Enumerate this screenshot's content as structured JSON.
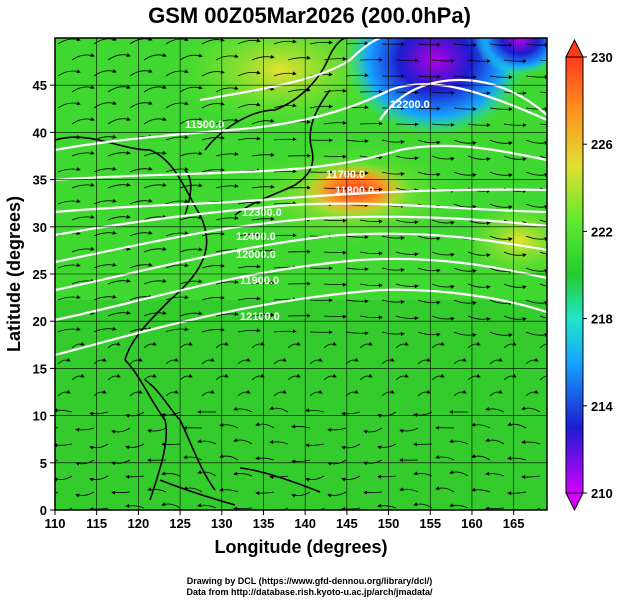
{
  "title": "GSM 00Z05Mar2026 (200.0hPa)",
  "chart_data": {
    "type": "heatmap",
    "xlabel": "Longitude (degrees)",
    "ylabel": "Latitude  (degrees)",
    "xlim": [
      110,
      169
    ],
    "ylim": [
      0,
      50
    ],
    "x_ticks": [
      "110",
      "115",
      "120",
      "125",
      "130",
      "135",
      "140",
      "145",
      "150",
      "155",
      "160",
      "165"
    ],
    "y_ticks": [
      "0",
      "5",
      "10",
      "15",
      "20",
      "25",
      "30",
      "35",
      "40",
      "45"
    ],
    "colorbar": {
      "labels": [
        "230",
        "226",
        "222",
        "218",
        "214",
        "210"
      ],
      "range": [
        210,
        230
      ],
      "colors": [
        "#d400ff",
        "#1c1cd0",
        "#16a4ff",
        "#22e6c8",
        "#22cc30",
        "#5fe830",
        "#e0e030",
        "#ff9020",
        "#ff3a1a"
      ]
    },
    "contour_labels": [
      "11800.0",
      "11700.0",
      "12300.0",
      "12400.0",
      "12000.0",
      "11500.0",
      "11900.0",
      "12100.0",
      "12200.0"
    ],
    "grid": true
  },
  "credits": {
    "line1": "Drawing by DCL (https://www.gfd-dennou.org/library/dcl/)",
    "line2": "Data from http://database.rish.kyoto-u.ac.jp/arch/jmadata/"
  }
}
